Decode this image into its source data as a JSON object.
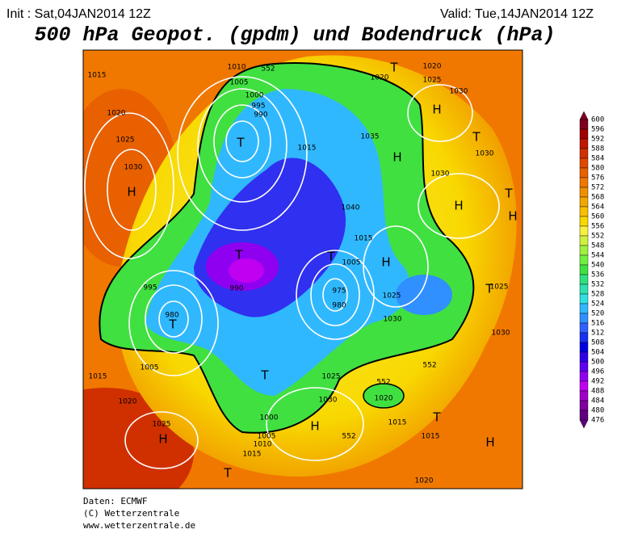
{
  "header": {
    "init": "Init : Sat,04JAN2014 12Z",
    "valid": "Valid: Tue,14JAN2014 12Z",
    "title": "500 hPa Geopot. (gpdm) und Bodendruck (hPa)"
  },
  "colorbar": {
    "levels": [
      600,
      596,
      592,
      588,
      584,
      580,
      576,
      572,
      568,
      564,
      560,
      556,
      552,
      548,
      544,
      540,
      536,
      532,
      528,
      524,
      520,
      516,
      512,
      508,
      504,
      500,
      496,
      492,
      488,
      484,
      480,
      476
    ],
    "colors": [
      "#800020",
      "#a00000",
      "#c01800",
      "#d03000",
      "#e04800",
      "#e86000",
      "#f07800",
      "#f09000",
      "#f0a800",
      "#f8c000",
      "#f8d800",
      "#f8f040",
      "#d0f040",
      "#a0f040",
      "#70f040",
      "#40e040",
      "#30e080",
      "#30e0b0",
      "#30e0e0",
      "#30b8ff",
      "#3090ff",
      "#3060ff",
      "#1830f0",
      "#0000e0",
      "#3000e8",
      "#6000f0",
      "#9000f0",
      "#c000f0",
      "#a000c8",
      "#8000a0",
      "#600080"
    ]
  },
  "map": {
    "labels": [
      "1015",
      "1020",
      "1025",
      "1030",
      "H",
      "1010",
      "1005",
      "1000",
      "995",
      "990",
      "T",
      "1015",
      "1020",
      "T",
      "1020",
      "1025",
      "1030",
      "H",
      "1035",
      "H",
      "1030",
      "H",
      "1040",
      "1015",
      "1025",
      "1030",
      "H",
      "T",
      "975",
      "980",
      "1005",
      "T",
      "990",
      "995",
      "980",
      "T",
      "1005",
      "1015",
      "1020",
      "1025",
      "H",
      "T",
      "1000",
      "1005",
      "1010",
      "1015",
      "H",
      "T",
      "1025",
      "1030",
      "1020",
      "1015",
      "T",
      "1015",
      "H",
      "1020",
      "T",
      "1030",
      "T",
      "H",
      "1025",
      "1030",
      "T",
      "552",
      "552",
      "552",
      "552"
    ]
  },
  "footer": {
    "source": "Daten: ECMWF",
    "copyright": "(C) Wetterzentrale",
    "url": "www.wetterzentrale.de"
  }
}
